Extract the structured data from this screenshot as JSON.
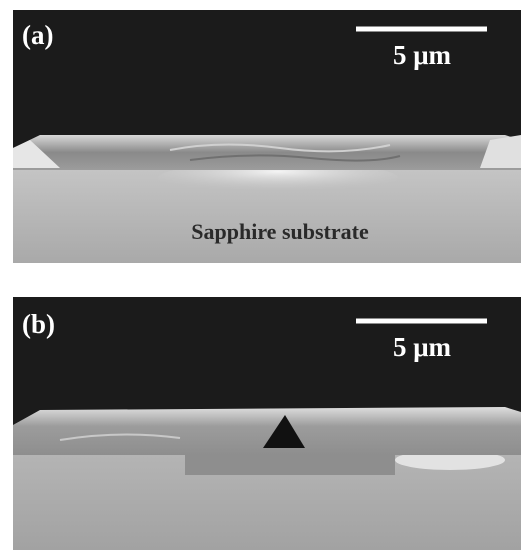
{
  "panels": [
    {
      "label": "(a)",
      "scale_bar": "5 μm",
      "caption": "Sapphire substrate"
    },
    {
      "label": "(b)",
      "scale_bar": "5 μm"
    }
  ]
}
